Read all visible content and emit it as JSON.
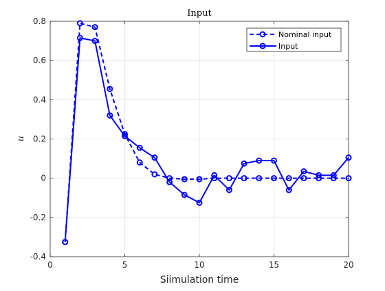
{
  "chart_data": {
    "type": "line",
    "title": "Input",
    "xlabel": "Siimulation time",
    "ylabel": "u",
    "xlim": [
      0,
      20
    ],
    "ylim": [
      -0.4,
      0.8
    ],
    "xticks": [
      0,
      5,
      10,
      15,
      20
    ],
    "yticks": [
      -0.4,
      -0.2,
      0,
      0.2,
      0.4,
      0.6,
      0.8
    ],
    "xtick_labels": [
      "0",
      "5",
      "10",
      "15",
      "20"
    ],
    "ytick_labels": [
      "-0.4",
      "-0.2",
      "0",
      "0.2",
      "0.4",
      "0.6",
      "0.8"
    ],
    "grid": true,
    "legend_position": "top-right",
    "series": [
      {
        "name": "Nominal input",
        "color": "#0000ff",
        "line_style": "dashed",
        "marker": "circle",
        "x": [
          1,
          2,
          3,
          4,
          5,
          6,
          7,
          8,
          9,
          10,
          11,
          12,
          13,
          14,
          15,
          16,
          17,
          18,
          19,
          20
        ],
        "y": [
          -0.325,
          0.79,
          0.77,
          0.455,
          0.225,
          0.08,
          0.02,
          0.0,
          -0.005,
          -0.005,
          0.0,
          0.0,
          0.0,
          0.0,
          0.0,
          0.0,
          0.0,
          0.0,
          0.0,
          0.0
        ]
      },
      {
        "name": "Input",
        "color": "#0000ff",
        "line_style": "solid",
        "marker": "circle",
        "x": [
          1,
          2,
          3,
          4,
          5,
          6,
          7,
          8,
          9,
          10,
          11,
          12,
          13,
          14,
          15,
          16,
          17,
          18,
          19,
          20
        ],
        "y": [
          -0.325,
          0.715,
          0.7,
          0.32,
          0.215,
          0.155,
          0.105,
          -0.02,
          -0.085,
          -0.125,
          0.015,
          -0.06,
          0.075,
          0.09,
          0.09,
          -0.06,
          0.035,
          0.015,
          0.015,
          0.105
        ]
      }
    ]
  }
}
